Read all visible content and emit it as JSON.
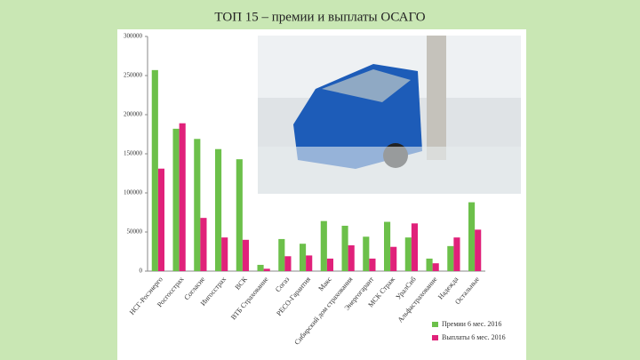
{
  "chart_data": {
    "type": "bar",
    "title": "ТОП 15 – премии и выплаты ОСАГО",
    "categories": [
      "НСГ-Росэнерго",
      "Росгосстрах",
      "Согласие",
      "Ингосстрах",
      "ВСК",
      "ВТБ Страхование",
      "Согаз",
      "РЕСО-Гарантия",
      "Макс",
      "Сибирский дом страхования",
      "Энергогарант",
      "МСК Страж",
      "УралСиб",
      "Альфастрахование",
      "Надежда",
      "Остальные"
    ],
    "series": [
      {
        "name": "Премии 6 мес. 2016",
        "color": "#6cc04a",
        "values": [
          257000,
          182000,
          169000,
          156000,
          143000,
          8000,
          41000,
          35000,
          64000,
          58000,
          44000,
          63000,
          43000,
          16000,
          32000,
          88000
        ]
      },
      {
        "name": "Выплаты 6 мес. 2016",
        "color": "#e0217a",
        "values": [
          131000,
          189000,
          68000,
          43000,
          40000,
          3000,
          19000,
          20000,
          16000,
          33000,
          16000,
          31000,
          61000,
          10000,
          43000,
          53000
        ]
      }
    ],
    "ylim": [
      0,
      300000
    ],
    "yticks": [
      0,
      50000,
      100000,
      150000,
      200000,
      250000,
      300000
    ],
    "grid": false,
    "legend": "bottom-right"
  }
}
